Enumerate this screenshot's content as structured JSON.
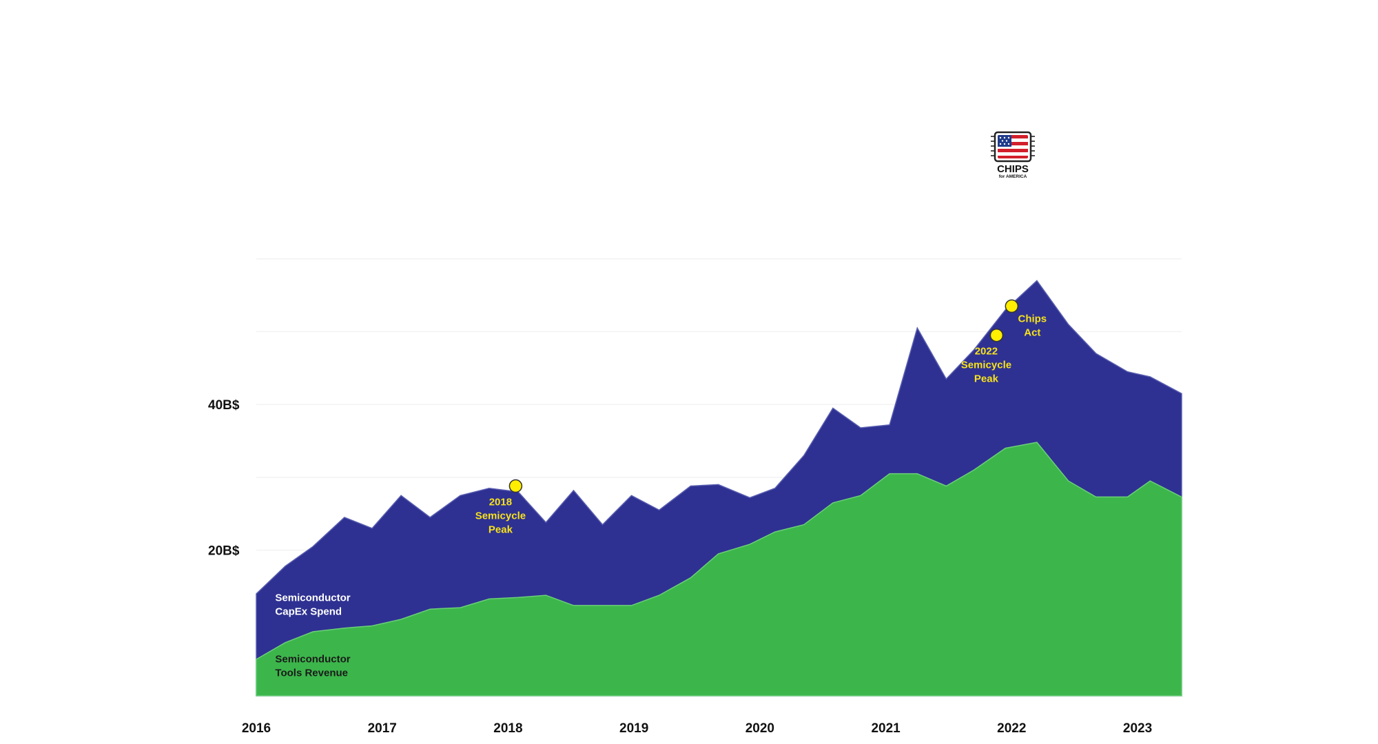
{
  "chart_data": {
    "type": "area",
    "stacked": false,
    "x_unit": "year",
    "x": [
      2016.0,
      2016.23,
      2016.45,
      2016.7,
      2016.92,
      2017.15,
      2017.38,
      2017.62,
      2017.85,
      2018.08,
      2018.3,
      2018.52,
      2018.75,
      2018.98,
      2019.2,
      2019.45,
      2019.67,
      2019.92,
      2020.12,
      2020.35,
      2020.58,
      2020.8,
      2021.03,
      2021.25,
      2021.48,
      2021.7,
      2021.95,
      2022.2,
      2022.45,
      2022.67,
      2022.92,
      2023.1,
      2023.35
    ],
    "xlim": [
      2016.0,
      2023.35
    ],
    "ylim": [
      0,
      70
    ],
    "y_ticks": [
      {
        "value": 20,
        "label": "20B$"
      },
      {
        "value": 40,
        "label": "40B$"
      }
    ],
    "x_ticks": [
      {
        "value": 2016,
        "label": "2016"
      },
      {
        "value": 2017,
        "label": "2017"
      },
      {
        "value": 2018,
        "label": "2018"
      },
      {
        "value": 2019,
        "label": "2019"
      },
      {
        "value": 2020,
        "label": "2020"
      },
      {
        "value": 2021,
        "label": "2021"
      },
      {
        "value": 2022,
        "label": "2022"
      },
      {
        "value": 2023,
        "label": "2023"
      }
    ],
    "grid": true,
    "series": [
      {
        "name": "Semiconductor CapEx Spend",
        "label_lines": [
          "Semiconductor",
          "CapEx Spend"
        ],
        "label_anchor": [
          2016.15,
          13.0
        ],
        "label_color": "#ffffff",
        "color": "#2e3192",
        "values": [
          14.0,
          17.8,
          20.5,
          24.5,
          23.0,
          27.5,
          24.5,
          27.5,
          28.5,
          28.0,
          23.8,
          28.2,
          23.5,
          27.5,
          25.5,
          28.8,
          29.0,
          27.2,
          28.5,
          33.0,
          39.5,
          36.8,
          37.2,
          50.5,
          43.5,
          47.5,
          53.0,
          57.0,
          51.0,
          47.0,
          44.5,
          43.8,
          41.5
        ]
      },
      {
        "name": "Semiconductor Tools Revenue",
        "label_lines": [
          "Semiconductor",
          "Tools Revenue"
        ],
        "label_anchor": [
          2016.15,
          4.6
        ],
        "label_color": "#1a1a1a",
        "color": "#3cb64b",
        "values": [
          5.0,
          7.3,
          8.8,
          9.3,
          9.6,
          10.5,
          11.9,
          12.1,
          13.3,
          13.5,
          13.8,
          12.4,
          12.4,
          12.4,
          13.8,
          16.2,
          19.5,
          20.8,
          22.5,
          23.5,
          26.5,
          27.5,
          30.5,
          30.5,
          28.8,
          31.0,
          34.0,
          34.8,
          29.5,
          27.3,
          27.3,
          29.5,
          27.3
        ]
      }
    ],
    "annotations": [
      {
        "x": 2018.06,
        "y": 28.8,
        "lines": [
          "2018",
          "Semicycle",
          "Peak"
        ]
      },
      {
        "x": 2021.88,
        "y": 49.5,
        "lines": [
          "2022",
          "Semicycle",
          "Peak"
        ]
      },
      {
        "x": 2022.0,
        "y": 53.5,
        "lines": [
          "Chips",
          "Act"
        ]
      }
    ],
    "annotation_color": "#f7e21b"
  },
  "logo": {
    "name": "chips-for-america-logo",
    "text": "CHIPS",
    "subtext": "for AMERICA"
  }
}
